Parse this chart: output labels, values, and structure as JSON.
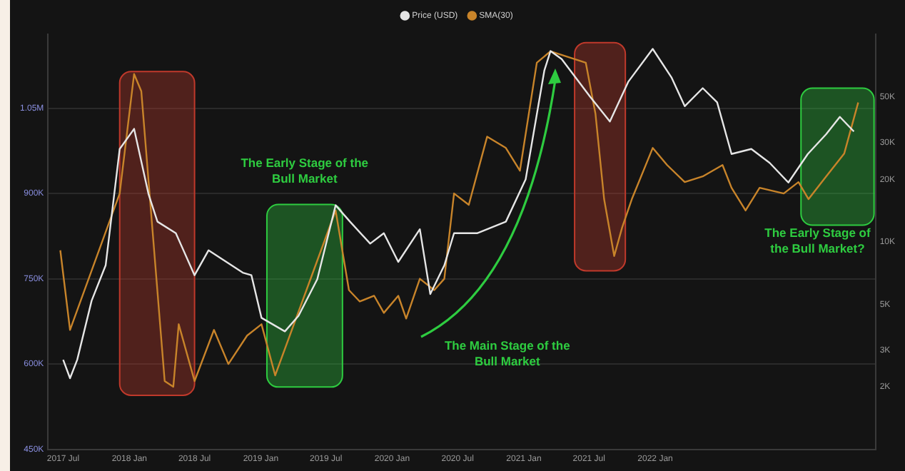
{
  "chart_data": {
    "type": "line",
    "legend": "top",
    "grid": "y",
    "marker": "none",
    "line_style": "solid",
    "log": "y2",
    "xlim": [
      "2017-05-20",
      "2023-09-05"
    ],
    "xticks": [
      {
        "value": "2017-07",
        "label": "2017 Jul"
      },
      {
        "value": "2018-01",
        "label": "2018 Jan"
      },
      {
        "value": "2018-07",
        "label": "2018 Jul"
      },
      {
        "value": "2019-01",
        "label": "2019 Jan"
      },
      {
        "value": "2019-07",
        "label": "2019 Jul"
      },
      {
        "value": "2020-01",
        "label": "2020 Jan"
      },
      {
        "value": "2020-07",
        "label": "2020 Jul"
      },
      {
        "value": "2021-01",
        "label": "2021 Jan"
      },
      {
        "value": "2021-07",
        "label": "2021 Jul"
      },
      {
        "value": "2022-01",
        "label": "2022 Jan"
      }
    ],
    "ylim": [
      450000,
      1180000
    ],
    "yticks": [
      {
        "value": 450000,
        "label": "450K"
      },
      {
        "value": 600000,
        "label": "600K"
      },
      {
        "value": 750000,
        "label": "750K"
      },
      {
        "value": 900000,
        "label": "900K"
      },
      {
        "value": 1050000,
        "label": "1.05M"
      }
    ],
    "y2lim": [
      1000,
      100000
    ],
    "y2ticks": [
      {
        "value": 2000,
        "label": "2K"
      },
      {
        "value": 3000,
        "label": "3K"
      },
      {
        "value": 5000,
        "label": "5K"
      },
      {
        "value": 10000,
        "label": "10K"
      },
      {
        "value": 20000,
        "label": "20K"
      },
      {
        "value": 30000,
        "label": "30K"
      },
      {
        "value": 50000,
        "label": "50K"
      }
    ],
    "series": [
      {
        "name": "Price (USD)",
        "color": "#e6e6e6",
        "axis": "y2",
        "x": [
          "2017-07-01",
          "2017-07-20",
          "2017-08-09",
          "2017-09-18",
          "2017-10-27",
          "2017-12-05",
          "2018-01-14",
          "2018-02-23",
          "2018-03-20",
          "2018-05-10",
          "2018-07-01",
          "2018-08-09",
          "2018-11-12",
          "2018-12-06",
          "2019-01-03",
          "2019-03-09",
          "2019-04-16",
          "2019-06-07",
          "2019-07-28",
          "2019-09-06",
          "2019-11-01",
          "2019-12-09",
          "2020-01-18",
          "2020-03-18",
          "2020-04-16",
          "2020-05-25",
          "2020-06-21",
          "2020-08-24",
          "2020-11-12",
          "2021-01-06",
          "2021-02-27",
          "2021-03-16",
          "2021-04-16",
          "2021-07-04",
          "2021-08-28",
          "2021-10-18",
          "2021-12-25",
          "2022-02-15",
          "2022-03-24",
          "2022-05-13",
          "2022-06-22",
          "2022-08-01",
          "2022-09-25",
          "2022-11-15",
          "2023-01-06",
          "2023-03-01",
          "2023-04-21",
          "2023-05-29",
          "2023-07-07"
        ],
        "values": [
          2700,
          2200,
          2700,
          5200,
          7700,
          28000,
          35000,
          17000,
          12500,
          11000,
          6900,
          9100,
          7100,
          6900,
          4300,
          3700,
          4400,
          6600,
          15000,
          12500,
          9800,
          11000,
          8000,
          11500,
          5600,
          7700,
          11000,
          11000,
          12500,
          20000,
          67000,
          83000,
          76000,
          50000,
          38000,
          59000,
          85000,
          62000,
          45000,
          55000,
          47000,
          26500,
          28000,
          24000,
          19300,
          26500,
          33000,
          40000,
          34000
        ]
      },
      {
        "name": "SMA(30)",
        "color": "#c8842a",
        "axis": "y",
        "x": [
          "2017-06-23",
          "2017-07-20",
          "2017-12-05",
          "2018-01-14",
          "2018-02-03",
          "2018-04-09",
          "2018-05-03",
          "2018-05-18",
          "2018-07-01",
          "2018-08-24",
          "2018-10-03",
          "2018-11-24",
          "2019-01-03",
          "2019-02-10",
          "2019-07-28",
          "2019-09-03",
          "2019-10-03",
          "2019-11-12",
          "2019-12-09",
          "2020-01-18",
          "2020-02-09",
          "2020-03-18",
          "2020-04-27",
          "2020-05-25",
          "2020-06-21",
          "2020-08-01",
          "2020-09-21",
          "2020-11-12",
          "2020-12-21",
          "2021-02-06",
          "2021-03-16",
          "2021-06-22",
          "2021-07-19",
          "2021-08-12",
          "2021-09-09",
          "2021-10-01",
          "2021-10-28",
          "2021-12-25",
          "2022-02-03",
          "2022-03-24",
          "2022-05-13",
          "2022-07-07",
          "2022-08-01",
          "2022-09-09",
          "2022-10-18",
          "2022-12-24",
          "2023-02-03",
          "2023-03-03",
          "2023-04-21",
          "2023-06-10",
          "2023-07-19"
        ],
        "values": [
          800000,
          660000,
          900000,
          1110000,
          1080000,
          570000,
          560000,
          670000,
          570000,
          660000,
          600000,
          650000,
          670000,
          580000,
          870000,
          730000,
          710000,
          720000,
          690000,
          720000,
          680000,
          750000,
          730000,
          750000,
          900000,
          880000,
          1000000,
          980000,
          940000,
          1130000,
          1150000,
          1130000,
          1040000,
          890000,
          790000,
          840000,
          890000,
          980000,
          950000,
          920000,
          930000,
          950000,
          910000,
          870000,
          910000,
          900000,
          920000,
          890000,
          930000,
          970000,
          1060000
        ]
      }
    ],
    "bands": [
      {
        "axis": "x",
        "from": "2017-12-05",
        "to": "2018-07-01",
        "color": "#c0392b"
      },
      {
        "axis": "x",
        "from": "2019-01-18",
        "to": "2019-08-16",
        "color": "#2ecc40"
      },
      {
        "axis": "x",
        "from": "2021-05-22",
        "to": "2021-10-10",
        "color": "#c0392b"
      },
      {
        "axis": "x",
        "from": "2023-02-10",
        "to": "2023-09-01",
        "color": "#2ecc40"
      }
    ],
    "annotations": [
      "The Early Stage of the Bull Market",
      "The Main Stage of the Bull Market",
      "The Early Stage of the Bull Market?"
    ]
  }
}
